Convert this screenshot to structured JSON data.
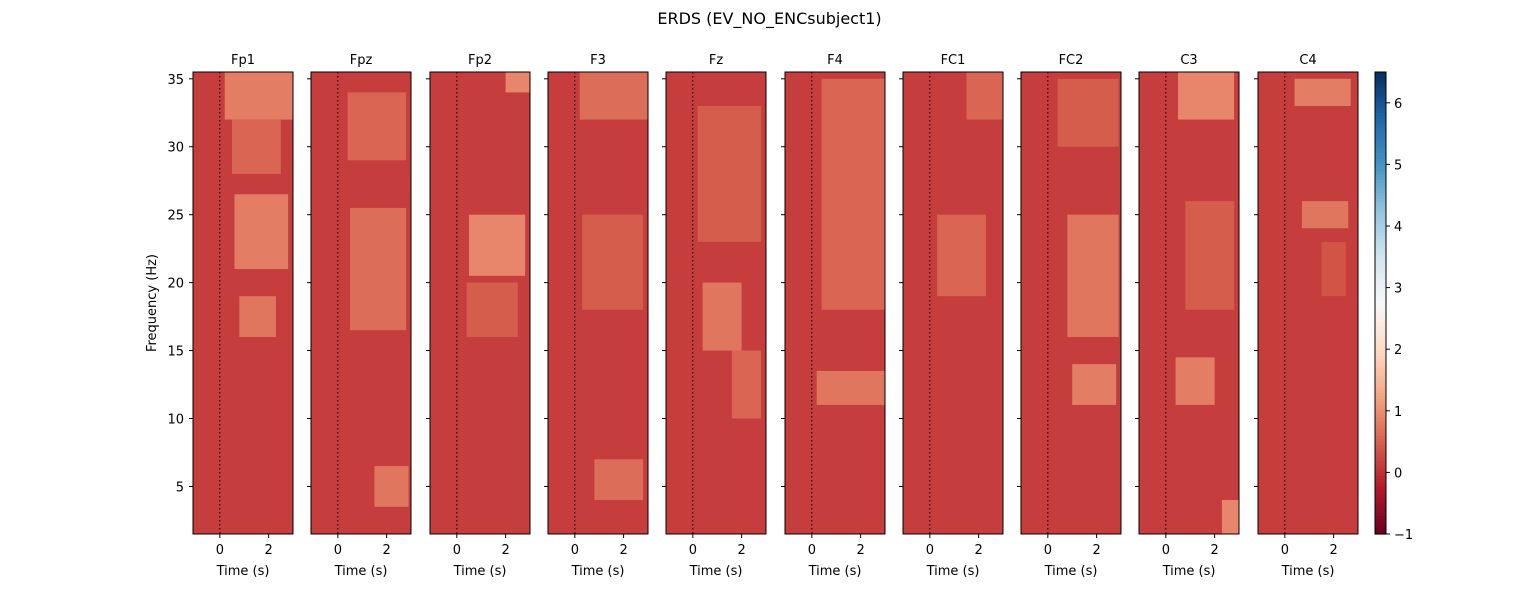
{
  "figure": {
    "title": "ERDS (EV_NO_ENCsubject1)"
  },
  "chart_data": {
    "type": "heatmap",
    "title": "ERDS (EV_NO_ENCsubject1)",
    "channels": [
      "Fp1",
      "Fpz",
      "Fp2",
      "F3",
      "Fz",
      "F4",
      "FC1",
      "FC2",
      "C3",
      "C4"
    ],
    "xlabel": "Time (s)",
    "ylabel": "Frequency (Hz)",
    "xlim": [
      -1.1,
      3.0
    ],
    "ylim": [
      1.5,
      35.5
    ],
    "xticks": [
      0,
      2
    ],
    "yticks": [
      5,
      10,
      15,
      20,
      25,
      30,
      35
    ],
    "event_marker_time": 0,
    "colorbar": {
      "vmin": -1,
      "vmax": 6.5,
      "ticks": [
        -1,
        0,
        1,
        2,
        3,
        4,
        5,
        6
      ],
      "colormap": "RdBu"
    },
    "background_value": 0.15,
    "blobs": [
      {
        "ch": "Fp1",
        "t0": 0.2,
        "t1": 3.0,
        "f0": 32,
        "f1": 35.5,
        "v": 0.9
      },
      {
        "ch": "Fp1",
        "t0": 0.5,
        "t1": 2.5,
        "f0": 28,
        "f1": 32,
        "v": 0.6
      },
      {
        "ch": "Fp1",
        "t0": 0.6,
        "t1": 2.8,
        "f0": 21,
        "f1": 26.5,
        "v": 0.9
      },
      {
        "ch": "Fp1",
        "t0": 0.8,
        "t1": 2.3,
        "f0": 16,
        "f1": 19,
        "v": 0.8
      },
      {
        "ch": "Fpz",
        "t0": 0.4,
        "t1": 2.8,
        "f0": 29,
        "f1": 34,
        "v": 0.6
      },
      {
        "ch": "Fpz",
        "t0": 0.5,
        "t1": 2.8,
        "f0": 16.5,
        "f1": 25.5,
        "v": 0.7
      },
      {
        "ch": "Fpz",
        "t0": 1.5,
        "t1": 2.9,
        "f0": 3.5,
        "f1": 6.5,
        "v": 0.8
      },
      {
        "ch": "Fp2",
        "t0": 2.0,
        "t1": 3.0,
        "f0": 34,
        "f1": 35.5,
        "v": 1.0
      },
      {
        "ch": "Fp2",
        "t0": 0.5,
        "t1": 2.8,
        "f0": 20.5,
        "f1": 25,
        "v": 1.0
      },
      {
        "ch": "Fp2",
        "t0": 0.4,
        "t1": 2.5,
        "f0": 16,
        "f1": 20,
        "v": 0.5
      },
      {
        "ch": "F3",
        "t0": 0.2,
        "t1": 3.0,
        "f0": 32,
        "f1": 35.5,
        "v": 0.7
      },
      {
        "ch": "F3",
        "t0": 0.3,
        "t1": 2.8,
        "f0": 18,
        "f1": 25,
        "v": 0.5
      },
      {
        "ch": "F3",
        "t0": 0.8,
        "t1": 2.8,
        "f0": 4,
        "f1": 7,
        "v": 0.7
      },
      {
        "ch": "Fz",
        "t0": 0.2,
        "t1": 2.8,
        "f0": 23,
        "f1": 33,
        "v": 0.5
      },
      {
        "ch": "Fz",
        "t0": 0.4,
        "t1": 2.0,
        "f0": 15,
        "f1": 20,
        "v": 0.8
      },
      {
        "ch": "Fz",
        "t0": 1.6,
        "t1": 2.8,
        "f0": 10,
        "f1": 15,
        "v": 0.6
      },
      {
        "ch": "F4",
        "t0": 0.4,
        "t1": 3.0,
        "f0": 18,
        "f1": 35,
        "v": 0.6
      },
      {
        "ch": "F4",
        "t0": 0.2,
        "t1": 3.0,
        "f0": 11,
        "f1": 13.5,
        "v": 0.8
      },
      {
        "ch": "FC1",
        "t0": 1.5,
        "t1": 3.0,
        "f0": 32,
        "f1": 35.5,
        "v": 0.6
      },
      {
        "ch": "FC1",
        "t0": 0.3,
        "t1": 2.3,
        "f0": 19,
        "f1": 25,
        "v": 0.6
      },
      {
        "ch": "FC2",
        "t0": 0.4,
        "t1": 2.9,
        "f0": 30,
        "f1": 35,
        "v": 0.5
      },
      {
        "ch": "FC2",
        "t0": 0.8,
        "t1": 2.9,
        "f0": 16,
        "f1": 25,
        "v": 0.8
      },
      {
        "ch": "FC2",
        "t0": 1.0,
        "t1": 2.8,
        "f0": 11,
        "f1": 14,
        "v": 0.9
      },
      {
        "ch": "C3",
        "t0": 0.5,
        "t1": 2.8,
        "f0": 32,
        "f1": 35.5,
        "v": 1.0
      },
      {
        "ch": "C3",
        "t0": 0.8,
        "t1": 2.8,
        "f0": 18,
        "f1": 26,
        "v": 0.5
      },
      {
        "ch": "C3",
        "t0": 0.4,
        "t1": 2.0,
        "f0": 11,
        "f1": 14.5,
        "v": 0.9
      },
      {
        "ch": "C3",
        "t0": 2.3,
        "t1": 3.0,
        "f0": 1.5,
        "f1": 4,
        "v": 1.0
      },
      {
        "ch": "C4",
        "t0": 0.4,
        "t1": 2.7,
        "f0": 33,
        "f1": 35,
        "v": 0.9
      },
      {
        "ch": "C4",
        "t0": 0.7,
        "t1": 2.6,
        "f0": 24,
        "f1": 26,
        "v": 0.8
      },
      {
        "ch": "C4",
        "t0": 1.5,
        "t1": 2.5,
        "f0": 19,
        "f1": 23,
        "v": 0.4
      }
    ]
  }
}
